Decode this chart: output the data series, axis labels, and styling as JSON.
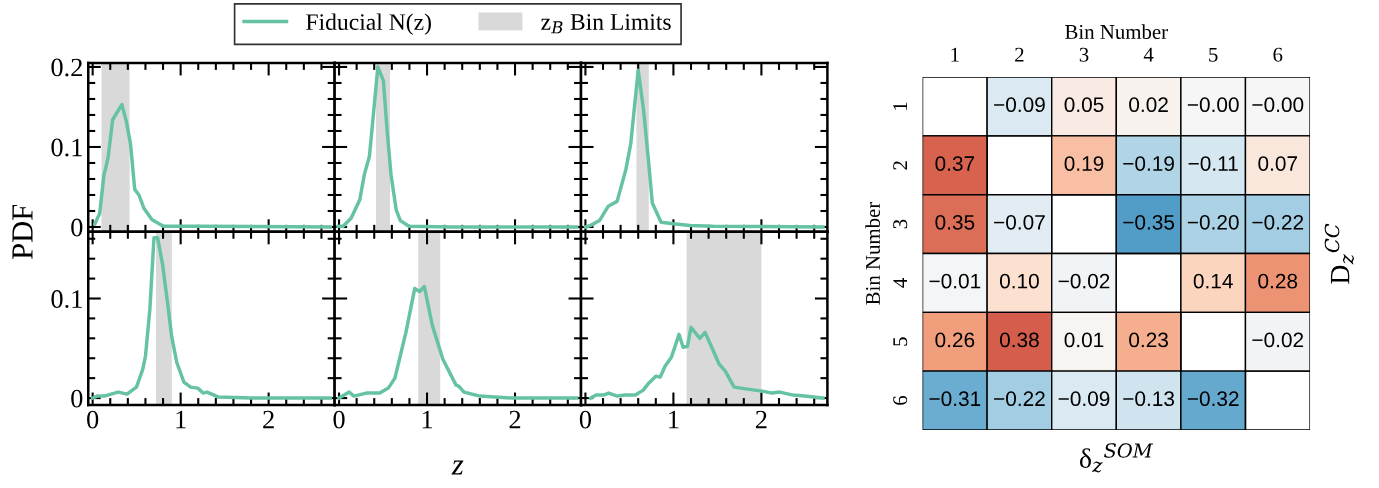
{
  "chart_data": [
    {
      "type": "line",
      "ylabel": "PDF",
      "legend": "top",
      "tick_labels": "y",
      "xlim": [
        -0.05,
        2.75
      ],
      "ylim": [
        -0.006,
        0.205
      ],
      "xticks": [
        0,
        {
          "value": 0.2,
          "label": null
        },
        {
          "value": 0.4,
          "label": null
        },
        {
          "value": 0.6,
          "label": null
        },
        {
          "value": 0.8,
          "label": null
        },
        1,
        {
          "value": 1.2,
          "label": null
        },
        {
          "value": 1.4,
          "label": null
        },
        {
          "value": 1.6,
          "label": null
        },
        {
          "value": 1.8,
          "label": null
        },
        2,
        {
          "value": 2.2,
          "label": null
        },
        {
          "value": 2.4,
          "label": null
        },
        {
          "value": 2.6,
          "label": null
        }
      ],
      "yticks": [
        0,
        {
          "value": 0.02,
          "label": null
        },
        {
          "value": 0.04,
          "label": null
        },
        {
          "value": 0.06,
          "label": null
        },
        {
          "value": 0.08,
          "label": null
        },
        0.1,
        {
          "value": 0.12,
          "label": null
        },
        {
          "value": 0.14,
          "label": null
        },
        {
          "value": 0.16,
          "label": null
        },
        {
          "value": 0.18,
          "label": null
        },
        0.2
      ],
      "x": [
        0.026,
        0.08,
        0.127,
        0.176,
        0.227,
        0.332,
        0.383,
        0.43,
        0.478,
        0.526,
        0.584,
        0.675,
        0.805,
        1.235,
        2.7
      ],
      "series": [
        {
          "name": "Fiducial N(z)",
          "color": "#66c2a5",
          "values": [
            0.004,
            0.017,
            0.064,
            0.087,
            0.134,
            0.153,
            0.132,
            0.104,
            0.047,
            0.04,
            0.023,
            0.009,
            0.001,
            0.001,
            0.0
          ]
        }
      ],
      "bands": [
        {
          "axis": "x",
          "from": 0.1,
          "to": 0.42,
          "label": "z$_{B}$ Bin Limits",
          "color": "#d9d9d9"
        }
      ]
    },
    {
      "type": "line",
      "tick_labels": false,
      "xlim": [
        -0.05,
        2.75
      ],
      "ylim": [
        -0.006,
        0.205
      ],
      "xticks": [
        0,
        {
          "value": 0.2,
          "label": null
        },
        {
          "value": 0.4,
          "label": null
        },
        {
          "value": 0.6,
          "label": null
        },
        {
          "value": 0.8,
          "label": null
        },
        1,
        {
          "value": 1.2,
          "label": null
        },
        {
          "value": 1.4,
          "label": null
        },
        {
          "value": 1.6,
          "label": null
        },
        {
          "value": 1.8,
          "label": null
        },
        2,
        {
          "value": 2.2,
          "label": null
        },
        {
          "value": 2.4,
          "label": null
        },
        {
          "value": 2.6,
          "label": null
        }
      ],
      "yticks": [
        0,
        {
          "value": 0.02,
          "label": null
        },
        {
          "value": 0.04,
          "label": null
        },
        {
          "value": 0.06,
          "label": null
        },
        {
          "value": 0.08,
          "label": null
        },
        0.1,
        {
          "value": 0.12,
          "label": null
        },
        {
          "value": 0.14,
          "label": null
        },
        {
          "value": 0.16,
          "label": null
        },
        {
          "value": 0.18,
          "label": null
        },
        0.2
      ],
      "x": [
        -0.01,
        0.046,
        0.137,
        0.236,
        0.288,
        0.345,
        0.396,
        0.441,
        0.504,
        0.546,
        0.59,
        0.65,
        0.697,
        0.795,
        1.286,
        2.7
      ],
      "series": [
        {
          "color": "#66c2a5",
          "values": [
            0.001,
            0.001,
            0.011,
            0.034,
            0.066,
            0.088,
            0.147,
            0.2,
            0.183,
            0.121,
            0.066,
            0.021,
            0.008,
            0.001,
            0.0,
            0.0
          ]
        }
      ],
      "bands": [
        {
          "axis": "x",
          "from": 0.42,
          "to": 0.58,
          "color": "#d9d9d9"
        }
      ]
    },
    {
      "type": "line",
      "tick_labels": false,
      "xlim": [
        -0.05,
        2.75
      ],
      "ylim": [
        -0.006,
        0.205
      ],
      "xticks": [
        0,
        {
          "value": 0.2,
          "label": null
        },
        {
          "value": 0.4,
          "label": null
        },
        {
          "value": 0.6,
          "label": null
        },
        {
          "value": 0.8,
          "label": null
        },
        1,
        {
          "value": 1.2,
          "label": null
        },
        {
          "value": 1.4,
          "label": null
        },
        {
          "value": 1.6,
          "label": null
        },
        {
          "value": 1.8,
          "label": null
        },
        2,
        {
          "value": 2.2,
          "label": null
        },
        {
          "value": 2.4,
          "label": null
        },
        {
          "value": 2.6,
          "label": null
        }
      ],
      "yticks": [
        0,
        {
          "value": 0.02,
          "label": null
        },
        {
          "value": 0.04,
          "label": null
        },
        {
          "value": 0.06,
          "label": null
        },
        {
          "value": 0.08,
          "label": null
        },
        0.1,
        {
          "value": 0.12,
          "label": null
        },
        {
          "value": 0.14,
          "label": null
        },
        {
          "value": 0.16,
          "label": null
        },
        {
          "value": 0.18,
          "label": null
        },
        0.2
      ],
      "x": [
        0.002,
        0.06,
        0.16,
        0.26,
        0.36,
        0.46,
        0.515,
        0.6,
        0.66,
        0.72,
        0.76,
        0.86,
        1.0,
        1.19,
        1.45,
        2.7
      ],
      "series": [
        {
          "color": "#66c2a5",
          "values": [
            0.0,
            0.002,
            0.008,
            0.026,
            0.032,
            0.072,
            0.104,
            0.196,
            0.147,
            0.079,
            0.03,
            0.006,
            0.004,
            0.002,
            0.001,
            0.0
          ]
        }
      ],
      "bands": [
        {
          "axis": "x",
          "from": 0.58,
          "to": 0.72,
          "color": "#d9d9d9"
        }
      ]
    },
    {
      "type": "line",
      "xlim": [
        -0.05,
        2.75
      ],
      "ylim": [
        -0.007,
        0.167
      ],
      "xticks": [
        0,
        {
          "value": 0.2,
          "label": null
        },
        {
          "value": 0.4,
          "label": null
        },
        {
          "value": 0.6,
          "label": null
        },
        {
          "value": 0.8,
          "label": null
        },
        1,
        {
          "value": 1.2,
          "label": null
        },
        {
          "value": 1.4,
          "label": null
        },
        {
          "value": 1.6,
          "label": null
        },
        {
          "value": 1.8,
          "label": null
        },
        2,
        {
          "value": 2.2,
          "label": null
        },
        {
          "value": 2.4,
          "label": null
        },
        {
          "value": 2.6,
          "label": null
        }
      ],
      "yticks": [
        0,
        {
          "value": 0.02,
          "label": null
        },
        {
          "value": 0.04,
          "label": null
        },
        {
          "value": 0.06,
          "label": null
        },
        {
          "value": 0.08,
          "label": null
        },
        0.1,
        {
          "value": 0.12,
          "label": null
        },
        {
          "value": 0.14,
          "label": null
        },
        {
          "value": 0.16,
          "label": null
        }
      ],
      "x": [
        0.0,
        0.052,
        0.133,
        0.209,
        0.291,
        0.39,
        0.498,
        0.57,
        0.6,
        0.65,
        0.697,
        0.738,
        0.795,
        0.855,
        0.898,
        0.955,
        1.037,
        1.114,
        1.194,
        1.256,
        1.3,
        1.43,
        1.8,
        2.7
      ],
      "series": [
        {
          "color": "#66c2a5",
          "values": [
            0.0,
            0.002,
            0.002,
            0.004,
            0.006,
            0.004,
            0.011,
            0.029,
            0.042,
            0.089,
            0.161,
            0.161,
            0.134,
            0.093,
            0.062,
            0.036,
            0.016,
            0.011,
            0.01,
            0.005,
            0.006,
            0.001,
            0.0,
            0.0
          ]
        }
      ],
      "bands": [
        {
          "axis": "x",
          "from": 0.72,
          "to": 0.9,
          "color": "#d9d9d9"
        }
      ]
    },
    {
      "type": "line",
      "xlabel": "z",
      "tick_labels": "x",
      "xlim": [
        -0.05,
        2.75
      ],
      "ylim": [
        -0.007,
        0.167
      ],
      "xticks": [
        0,
        {
          "value": 0.2,
          "label": null
        },
        {
          "value": 0.4,
          "label": null
        },
        {
          "value": 0.6,
          "label": null
        },
        {
          "value": 0.8,
          "label": null
        },
        1,
        {
          "value": 1.2,
          "label": null
        },
        {
          "value": 1.4,
          "label": null
        },
        {
          "value": 1.6,
          "label": null
        },
        {
          "value": 1.8,
          "label": null
        },
        2,
        {
          "value": 2.2,
          "label": null
        },
        {
          "value": 2.4,
          "label": null
        },
        {
          "value": 2.6,
          "label": null
        }
      ],
      "yticks": [
        0,
        {
          "value": 0.02,
          "label": null
        },
        {
          "value": 0.04,
          "label": null
        },
        {
          "value": 0.06,
          "label": null
        },
        {
          "value": 0.08,
          "label": null
        },
        0.1,
        {
          "value": 0.12,
          "label": null
        },
        {
          "value": 0.14,
          "label": null
        },
        {
          "value": 0.16,
          "label": null
        }
      ],
      "x": [
        0.0,
        0.116,
        0.169,
        0.31,
        0.462,
        0.56,
        0.635,
        0.76,
        0.86,
        0.915,
        0.97,
        1.06,
        1.18,
        1.33,
        1.36,
        1.42,
        1.6,
        1.97,
        2.7
      ],
      "series": [
        {
          "color": "#66c2a5",
          "values": [
            0.0,
            0.006,
            0.002,
            0.005,
            0.005,
            0.01,
            0.02,
            0.066,
            0.11,
            0.107,
            0.112,
            0.073,
            0.039,
            0.013,
            0.012,
            0.006,
            0.002,
            0.0,
            0.0
          ]
        }
      ],
      "bands": [
        {
          "axis": "x",
          "from": 0.9,
          "to": 1.15,
          "color": "#d9d9d9"
        }
      ]
    },
    {
      "type": "line",
      "tick_labels": "x",
      "xlim": [
        -0.05,
        2.75
      ],
      "ylim": [
        -0.007,
        0.167
      ],
      "xticks": [
        0,
        {
          "value": 0.2,
          "label": null
        },
        {
          "value": 0.4,
          "label": null
        },
        {
          "value": 0.6,
          "label": null
        },
        {
          "value": 0.8,
          "label": null
        },
        1,
        {
          "value": 1.2,
          "label": null
        },
        {
          "value": 1.4,
          "label": null
        },
        {
          "value": 1.6,
          "label": null
        },
        {
          "value": 1.8,
          "label": null
        },
        2,
        {
          "value": 2.2,
          "label": null
        },
        {
          "value": 2.4,
          "label": null
        },
        {
          "value": 2.6,
          "label": null
        }
      ],
      "yticks": [
        0,
        {
          "value": 0.02,
          "label": null
        },
        {
          "value": 0.04,
          "label": null
        },
        {
          "value": 0.06,
          "label": null
        },
        {
          "value": 0.08,
          "label": null
        },
        0.1,
        {
          "value": 0.12,
          "label": null
        },
        {
          "value": 0.14,
          "label": null
        },
        {
          "value": 0.16,
          "label": null
        }
      ],
      "x": [
        0.06,
        0.12,
        0.207,
        0.264,
        0.362,
        0.454,
        0.567,
        0.657,
        0.719,
        0.8,
        0.85,
        0.905,
        0.977,
        1.064,
        1.11,
        1.16,
        1.2,
        1.3,
        1.36,
        1.43,
        1.52,
        1.59,
        1.69,
        1.84,
        2.01,
        2.12,
        2.21,
        2.36,
        2.49,
        2.7
      ],
      "series": [
        {
          "color": "#66c2a5",
          "values": [
            0.0,
            0.003,
            0.003,
            0.005,
            0.002,
            0.003,
            0.003,
            0.008,
            0.015,
            0.022,
            0.021,
            0.032,
            0.041,
            0.064,
            0.051,
            0.052,
            0.071,
            0.06,
            0.066,
            0.052,
            0.034,
            0.027,
            0.011,
            0.009,
            0.007,
            0.005,
            0.006,
            0.003,
            0.002,
            0.0
          ]
        }
      ],
      "bands": [
        {
          "axis": "x",
          "from": 1.15,
          "to": 2.0,
          "color": "#d9d9d9"
        }
      ]
    },
    {
      "type": "heatmap",
      "xlabel": "Bin Number",
      "ylabel": "Bin Number",
      "categories": [
        "1",
        "2",
        "3",
        "4",
        "5",
        "6"
      ],
      "y_categories": [
        "1",
        "2",
        "3",
        "4",
        "5",
        "6"
      ],
      "cells": [
        [
          null,
          -0.09,
          0.05,
          0.02,
          0,
          0
        ],
        [
          0.37,
          null,
          0.19,
          -0.19,
          -0.11,
          0.07
        ],
        [
          0.35,
          -0.07,
          null,
          -0.35,
          -0.2,
          -0.22
        ],
        [
          -0.01,
          0.1,
          -0.02,
          null,
          0.14,
          0.28
        ],
        [
          0.26,
          0.38,
          0.01,
          0.23,
          null,
          -0.02
        ],
        [
          -0.31,
          -0.22,
          -0.09,
          -0.13,
          -0.32,
          null
        ]
      ],
      "cell_labels": [
        [
          null,
          "−0.09",
          "0.05",
          "0.02",
          "−0.00",
          "−0.00"
        ],
        [
          "0.37",
          null,
          "0.19",
          "−0.19",
          "−0.11",
          "0.07"
        ],
        [
          "0.35",
          "−0.07",
          null,
          "−0.35",
          "−0.20",
          "−0.22"
        ],
        [
          "−0.01",
          "0.10",
          "−0.02",
          null,
          "0.14",
          "0.28"
        ],
        [
          "0.26",
          "0.38",
          "0.01",
          "0.23",
          null,
          "−0.02"
        ],
        [
          "−0.31",
          "−0.22",
          "−0.09",
          "−0.13",
          "−0.32",
          null
        ]
      ],
      "annotations": [
        "δ$_{z}$$^{SOM}$",
        "D$_{z}$$^{CC}$"
      ]
    }
  ]
}
